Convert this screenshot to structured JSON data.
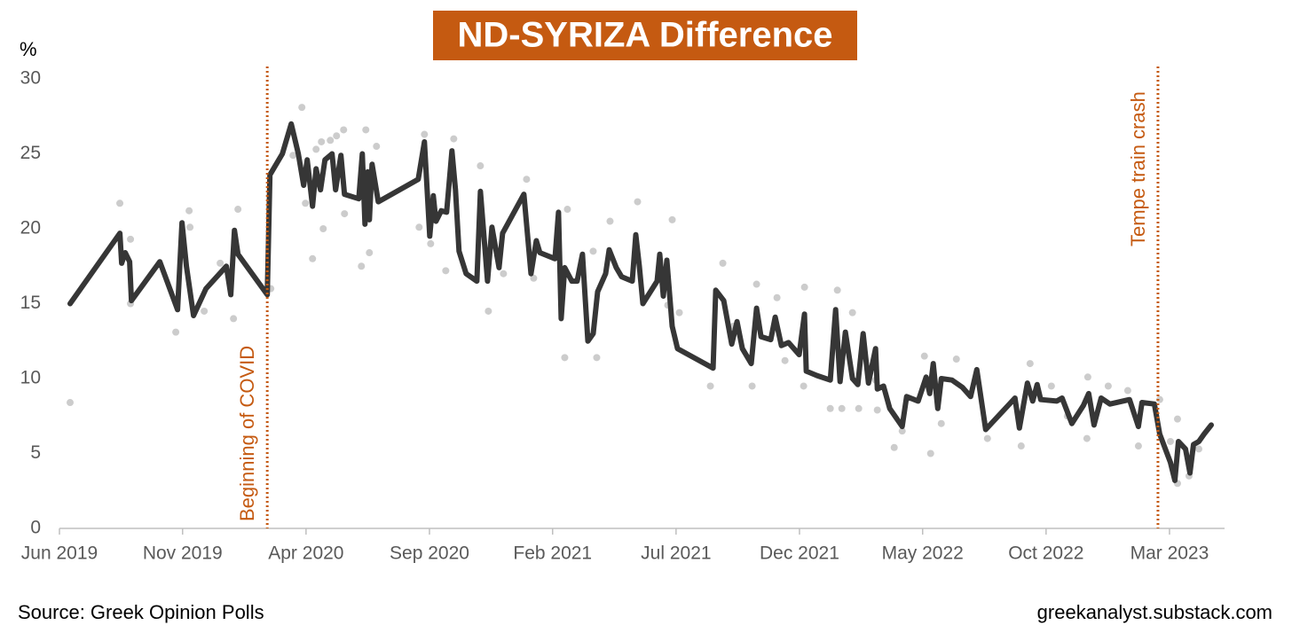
{
  "chart_data": {
    "type": "line",
    "title": "ND-SYRIZA Difference",
    "y_label": "%",
    "source": "Source: Greek Opinion Polls",
    "credit": "greekanalyst.substack.com",
    "xlim": [
      2019.417,
      2023.353
    ],
    "xticks": [
      {
        "value": 2019.417,
        "label": "Jun 2019"
      },
      {
        "value": 2019.833,
        "label": "Nov 2019"
      },
      {
        "value": 2020.25,
        "label": "Apr 2020"
      },
      {
        "value": 2020.667,
        "label": "Sep 2020"
      },
      {
        "value": 2021.083,
        "label": "Feb 2021"
      },
      {
        "value": 2021.5,
        "label": "Jul 2021"
      },
      {
        "value": 2021.917,
        "label": "Dec 2021"
      },
      {
        "value": 2022.333,
        "label": "May 2022"
      },
      {
        "value": 2022.75,
        "label": "Oct 2022"
      },
      {
        "value": 2023.167,
        "label": "Mar 2023"
      }
    ],
    "ylim": [
      0,
      30
    ],
    "yticks": [
      0,
      5,
      10,
      15,
      20,
      25,
      30
    ],
    "annotations": [
      {
        "text": "Beginning of COVID",
        "x": 2020.119,
        "color": "#c55a11"
      },
      {
        "text": "Tempe train crash",
        "x": 2023.128,
        "color": "#c55a11"
      }
    ],
    "series": [
      {
        "type": "scatter",
        "color": "#cccccc",
        "x": [
          2019.453,
          2019.621,
          2019.657,
          2019.657,
          2019.81,
          2019.858,
          2019.855,
          2019.906,
          2020.005,
          2020.02,
          2019.96,
          2020.131,
          2020.206,
          2020.236,
          2020.248,
          2020.272,
          2020.284,
          2020.302,
          2020.308,
          2020.332,
          2020.353,
          2020.377,
          2020.38,
          2020.437,
          2020.452,
          2020.464,
          2020.488,
          2020.65,
          2020.632,
          2020.671,
          2020.722,
          2020.749,
          2020.839,
          2020.866,
          2020.917,
          2020.995,
          2021.019,
          2021.124,
          2021.133,
          2021.22,
          2021.232,
          2021.277,
          2021.37,
          2021.472,
          2021.487,
          2021.511,
          2021.616,
          2021.658,
          2021.694,
          2021.757,
          2021.772,
          2021.841,
          2021.868,
          2021.931,
          2021.934,
          2022.021,
          2022.045,
          2022.06,
          2022.096,
          2022.117,
          2022.174,
          2022.18,
          2022.237,
          2022.264,
          2022.339,
          2022.36,
          2022.396,
          2022.447,
          2022.552,
          2022.666,
          2022.696,
          2022.768,
          2022.822,
          2022.888,
          2022.891,
          2022.96,
          2023.026,
          2023.062,
          2023.134,
          2023.17,
          2023.194,
          2023.194,
          2023.233,
          2023.266
        ],
        "values": [
          8.4,
          21.7,
          19.3,
          15.0,
          13.1,
          20.1,
          21.2,
          14.5,
          14.0,
          21.3,
          17.7,
          16.0,
          24.9,
          28.1,
          21.7,
          18.0,
          25.3,
          25.8,
          20.0,
          25.9,
          26.2,
          26.6,
          21.0,
          17.5,
          26.6,
          18.4,
          25.5,
          26.3,
          20.1,
          19.0,
          17.2,
          26.0,
          24.2,
          14.5,
          17.0,
          23.3,
          16.7,
          11.4,
          21.3,
          18.5,
          11.4,
          20.5,
          21.8,
          14.9,
          20.6,
          14.4,
          9.5,
          17.7,
          13.5,
          9.5,
          16.3,
          15.4,
          11.2,
          9.5,
          16.1,
          8.0,
          15.9,
          8.0,
          14.4,
          8.0,
          9.9,
          7.9,
          5.4,
          6.5,
          11.5,
          5.0,
          7.0,
          11.3,
          6.0,
          5.5,
          11.0,
          9.5,
          7.5,
          6.0,
          10.1,
          9.5,
          9.2,
          5.5,
          8.6,
          5.8,
          3.0,
          7.3,
          3.5,
          5.3
        ]
      },
      {
        "type": "line",
        "color": "#363636",
        "x": [
          2019.453,
          2019.621,
          2019.627,
          2019.639,
          2019.654,
          2019.66,
          2019.756,
          2019.816,
          2019.831,
          2019.846,
          2019.87,
          2019.912,
          2019.981,
          2019.996,
          2020.008,
          2020.02,
          2020.119,
          2020.128,
          2020.17,
          2020.2,
          2020.224,
          2020.242,
          2020.254,
          2020.272,
          2020.284,
          2020.299,
          2020.314,
          2020.338,
          2020.35,
          2020.368,
          2020.38,
          2020.428,
          2020.44,
          2020.449,
          2020.458,
          2020.464,
          2020.473,
          2020.494,
          2020.629,
          2020.65,
          2020.668,
          2020.68,
          2020.689,
          2020.707,
          2020.725,
          2020.743,
          2020.755,
          2020.767,
          2020.791,
          2020.827,
          2020.839,
          2020.863,
          2020.878,
          2020.902,
          2020.914,
          2020.986,
          2021.01,
          2021.028,
          2021.04,
          2021.091,
          2021.103,
          2021.112,
          2021.124,
          2021.148,
          2021.166,
          2021.184,
          2021.202,
          2021.22,
          2021.235,
          2021.262,
          2021.274,
          2021.298,
          2021.316,
          2021.352,
          2021.364,
          2021.376,
          2021.388,
          2021.436,
          2021.445,
          2021.457,
          2021.469,
          2021.487,
          2021.505,
          2021.625,
          2021.634,
          2021.661,
          2021.688,
          2021.706,
          2021.724,
          2021.754,
          2021.772,
          2021.787,
          2021.82,
          2021.835,
          2021.856,
          2021.88,
          2021.916,
          2021.934,
          2021.94,
          2021.976,
          2022.021,
          2022.039,
          2022.054,
          2022.072,
          2022.096,
          2022.114,
          2022.132,
          2022.15,
          2022.174,
          2022.18,
          2022.201,
          2022.222,
          2022.264,
          2022.279,
          2022.318,
          2022.345,
          2022.357,
          2022.369,
          2022.384,
          2022.396,
          2022.432,
          2022.468,
          2022.495,
          2022.516,
          2022.546,
          2022.645,
          2022.66,
          2022.687,
          2022.705,
          2022.72,
          2022.732,
          2022.786,
          2022.804,
          2022.837,
          2022.876,
          2022.894,
          2022.912,
          2022.936,
          2022.966,
          2023.032,
          2023.062,
          2023.074,
          2023.116,
          2023.134,
          2023.17,
          2023.185,
          2023.197,
          2023.221,
          2023.236,
          2023.248,
          2023.266,
          2023.284,
          2023.308
        ],
        "values": [
          15.0,
          19.7,
          17.7,
          18.4,
          17.8,
          15.2,
          17.8,
          14.6,
          20.4,
          17.5,
          14.2,
          16.0,
          17.5,
          15.6,
          19.9,
          18.3,
          15.6,
          23.6,
          25.0,
          27.0,
          25.0,
          22.9,
          24.6,
          21.5,
          24.0,
          22.6,
          24.6,
          25.0,
          22.6,
          24.9,
          22.3,
          22.0,
          25.0,
          20.3,
          23.8,
          20.6,
          24.3,
          21.8,
          23.3,
          25.8,
          19.5,
          22.2,
          20.5,
          21.2,
          21.1,
          25.2,
          22.6,
          18.5,
          17.0,
          16.5,
          22.5,
          16.5,
          20.1,
          17.4,
          19.7,
          22.3,
          17.0,
          19.2,
          18.4,
          18.0,
          21.1,
          14.0,
          17.4,
          16.5,
          16.5,
          18.3,
          12.5,
          13.0,
          15.8,
          17.0,
          18.6,
          17.4,
          16.8,
          16.5,
          19.6,
          17.5,
          15.0,
          16.5,
          18.3,
          15.5,
          17.9,
          13.5,
          12.0,
          10.7,
          15.9,
          15.2,
          12.3,
          13.8,
          12.0,
          11.0,
          14.7,
          12.8,
          12.6,
          14.1,
          12.2,
          12.4,
          11.6,
          14.3,
          10.5,
          10.2,
          9.9,
          14.6,
          9.8,
          13.1,
          10.0,
          9.6,
          13.0,
          9.7,
          12.0,
          9.3,
          9.5,
          8.0,
          6.8,
          8.8,
          8.5,
          10.1,
          9.0,
          11.0,
          8.0,
          10.0,
          9.9,
          9.4,
          8.8,
          10.6,
          6.6,
          8.7,
          6.7,
          9.7,
          8.5,
          9.6,
          8.6,
          8.5,
          8.7,
          7.0,
          8.2,
          9.0,
          6.9,
          8.7,
          8.3,
          8.6,
          6.8,
          8.4,
          8.3,
          6.3,
          4.4,
          3.2,
          5.8,
          5.3,
          3.7,
          5.6,
          5.8,
          6.3,
          6.9
        ]
      }
    ]
  }
}
